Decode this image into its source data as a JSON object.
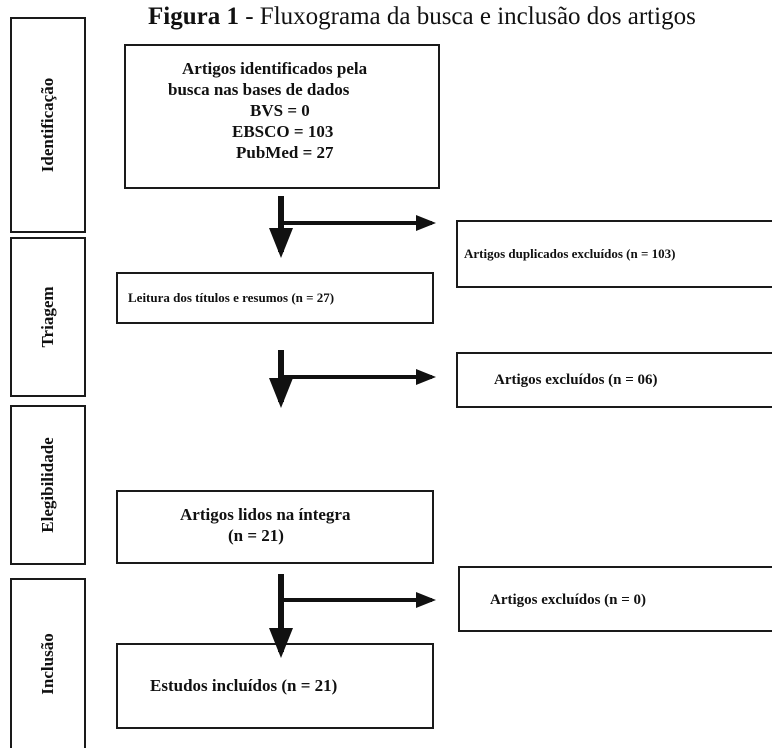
{
  "title": {
    "label": "Figura 1",
    "text": " - Fluxograma da busca e inclusão dos artigos"
  },
  "stages": {
    "identificacao": "Identificação",
    "triagem": "Triagem",
    "elegibilidade": "Elegibilidade",
    "inclusao": "Inclusão"
  },
  "boxes": {
    "identified": {
      "line1": "Artigos identificados pela",
      "line2": "busca nas bases de dados",
      "line3": "BVS = 0",
      "line4": "EBSCO = 103",
      "line5": "PubMed = 27"
    },
    "duplicates": "Artigos duplicados excluídos (n = 103)",
    "screening": "Leitura dos títulos e resumos (n = 27)",
    "excluded_screening": "Artigos excluídos (n = 06)",
    "fulltext": {
      "line1": "Artigos lidos na íntegra",
      "line2": "(n = 21)"
    },
    "excluded_fulltext": "Artigos excluídos (n = 0)",
    "included": "Estudos incluídos (n = 21)"
  }
}
